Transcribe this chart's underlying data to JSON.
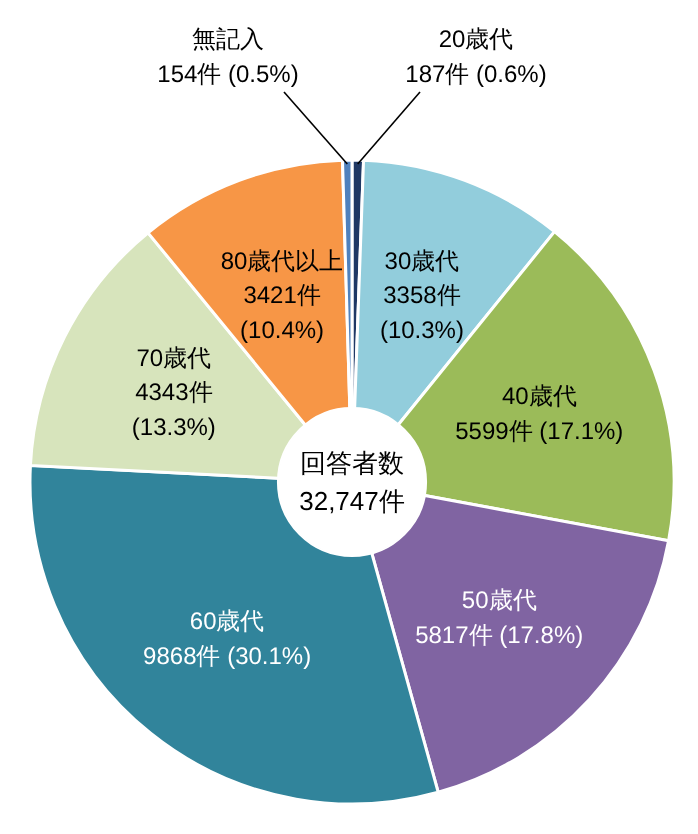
{
  "chart_data": {
    "type": "donut",
    "title": "回答者数",
    "subtitle": "32,747件",
    "categories": [
      "20歳代",
      "30歳代",
      "40歳代",
      "50歳代",
      "60歳代",
      "70歳代",
      "80歳代以上",
      "無記入"
    ],
    "values": [
      187,
      3358,
      5599,
      5817,
      9868,
      4343,
      3421,
      154
    ],
    "value_labels": [
      "187件 (0.6%)",
      "3358件 (10.3%)",
      "5599件 (17.1%)",
      "5817件 (17.8%)",
      "9868件 (30.1%)",
      "4343件 (13.3%)",
      "3421件 (10.4%)",
      "154件 (0.5%)"
    ],
    "colors": [
      "#1f3864",
      "#92cddc",
      "#9bbb59",
      "#8064a2",
      "#31849b",
      "#d7e4bc",
      "#f79646",
      "#4f81bd"
    ]
  }
}
